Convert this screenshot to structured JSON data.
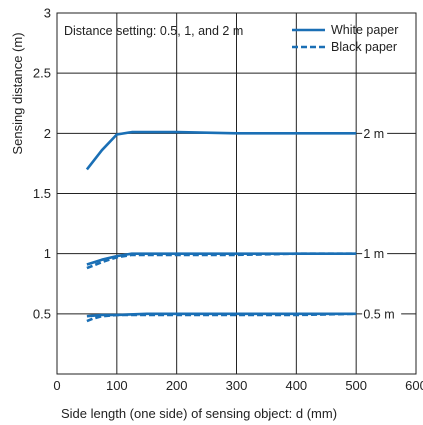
{
  "chart_data": {
    "type": "line",
    "title": "",
    "xlabel": "Side length (one side) of sensing object: d (mm)",
    "ylabel": "Sensing distance (m)",
    "xlim": [
      0,
      600
    ],
    "ylim": [
      0,
      3
    ],
    "x_ticks": [
      "0",
      "100",
      "200",
      "300",
      "400",
      "500",
      "600"
    ],
    "y_ticks": [
      "0.5",
      "1",
      "1.5",
      "2",
      "2.5",
      "3"
    ],
    "grid": true,
    "annotation": "Distance setting: 0.5, 1, and 2 m",
    "legend": {
      "placement": "top-right",
      "entries": [
        {
          "label": "White paper",
          "style": "solid"
        },
        {
          "label": "Black paper",
          "style": "dashed"
        }
      ]
    },
    "line_color": "#1a6fb5",
    "series": [
      {
        "group": "2 m",
        "style": "solid",
        "x": [
          50,
          75,
          100,
          125,
          150,
          200,
          300,
          400,
          500
        ],
        "y": [
          1.7,
          1.86,
          1.99,
          2.01,
          2.01,
          2.01,
          2.0,
          2.0,
          2.0
        ]
      },
      {
        "group": "1 m",
        "style": "solid",
        "x": [
          50,
          75,
          100,
          125,
          150,
          200,
          300,
          400,
          500
        ],
        "y": [
          0.91,
          0.95,
          0.98,
          1.0,
          1.0,
          1.0,
          1.0,
          1.0,
          1.0
        ]
      },
      {
        "group": "1 m",
        "style": "dashed",
        "x": [
          50,
          75,
          100,
          125,
          150,
          200,
          300,
          400,
          500
        ],
        "y": [
          0.88,
          0.93,
          0.97,
          0.99,
          0.99,
          0.99,
          0.99,
          1.0,
          1.0
        ]
      },
      {
        "group": "0.5 m",
        "style": "solid",
        "x": [
          50,
          75,
          100,
          150,
          200,
          300,
          400,
          500
        ],
        "y": [
          0.48,
          0.49,
          0.49,
          0.5,
          0.5,
          0.5,
          0.5,
          0.5
        ]
      },
      {
        "group": "0.5 m",
        "style": "dashed",
        "x": [
          50,
          60,
          75,
          100,
          150,
          200,
          300,
          400,
          500
        ],
        "y": [
          0.44,
          0.46,
          0.48,
          0.49,
          0.49,
          0.49,
          0.49,
          0.49,
          0.5
        ]
      }
    ],
    "end_labels": [
      {
        "text": "2 m",
        "y": 2.0
      },
      {
        "text": "1 m",
        "y": 1.0
      },
      {
        "text": "0.5 m",
        "y": 0.5
      }
    ]
  }
}
